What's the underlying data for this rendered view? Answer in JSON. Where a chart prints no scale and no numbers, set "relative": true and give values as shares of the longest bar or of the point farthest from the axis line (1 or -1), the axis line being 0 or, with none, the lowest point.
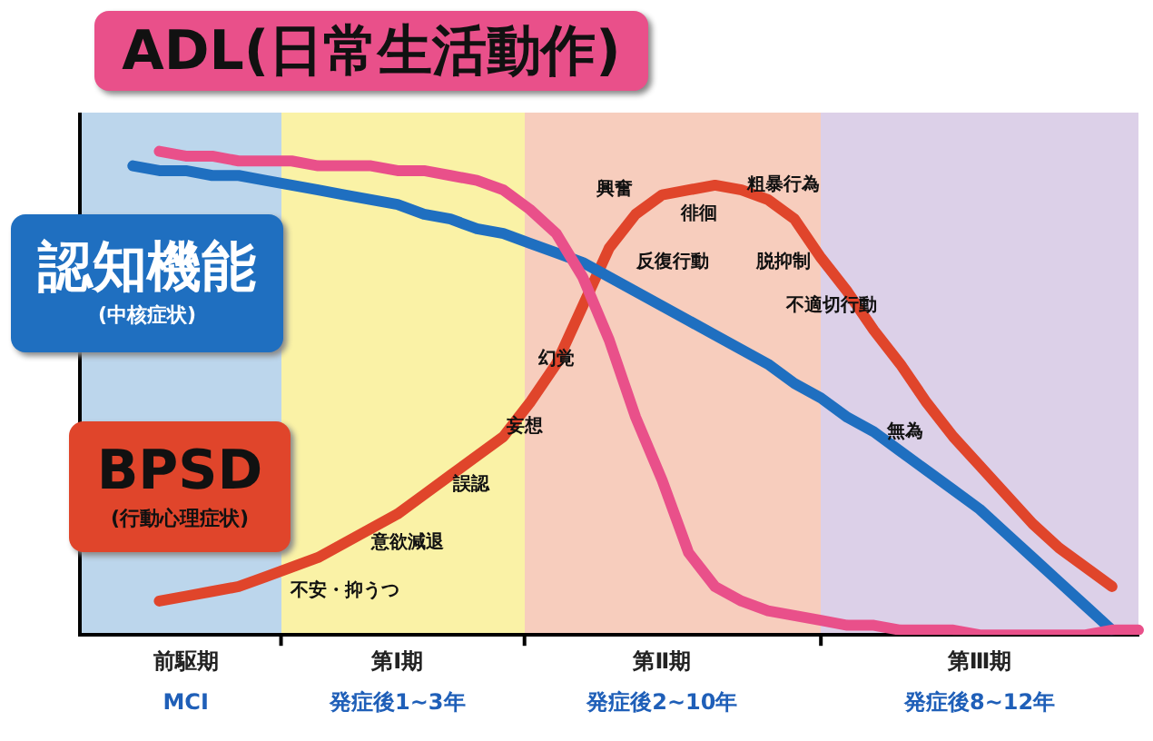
{
  "chart_data": {
    "type": "line",
    "relative": true,
    "marker": "none",
    "line_style": "solid",
    "categories": [
      null,
      null,
      null,
      null,
      "前駆期",
      null,
      null,
      null,
      null,
      null,
      null,
      null,
      "第Ⅰ期",
      null,
      null,
      null,
      null,
      null,
      null,
      null,
      null,
      null,
      "第Ⅱ期",
      null,
      null,
      null,
      null,
      null,
      null,
      null,
      null,
      null,
      null,
      null,
      "第Ⅲ期",
      null,
      null,
      null,
      null,
      null,
      null
    ],
    "series": [
      {
        "name": "ADL(日常生活動作)",
        "color": "#e9508a",
        "values": [
          null,
          null,
          null,
          1.0,
          0.99,
          0.99,
          0.98,
          0.98,
          0.98,
          0.97,
          0.97,
          0.97,
          0.96,
          0.96,
          0.95,
          0.94,
          0.92,
          0.88,
          0.83,
          0.74,
          0.61,
          0.45,
          0.32,
          0.17,
          0.1,
          0.07,
          0.05,
          0.04,
          0.03,
          0.02,
          0.02,
          0.01,
          0.01,
          0.01,
          0.0,
          0.0,
          0.0,
          0.0,
          0.0,
          0.01,
          0.01
        ]
      },
      {
        "name": "認知機能\n(中核症状)",
        "color": "#1f6fc0",
        "values": [
          null,
          null,
          0.97,
          0.96,
          0.96,
          0.95,
          0.95,
          0.94,
          0.93,
          0.92,
          0.91,
          0.9,
          0.89,
          0.87,
          0.86,
          0.84,
          0.83,
          0.81,
          0.79,
          0.77,
          0.74,
          0.71,
          0.68,
          0.65,
          0.62,
          0.59,
          0.56,
          0.52,
          0.49,
          0.45,
          0.42,
          0.38,
          0.34,
          0.3,
          0.26,
          0.21,
          0.16,
          0.11,
          0.06,
          0.01,
          null
        ]
      },
      {
        "name": "BPSD\n(行動心理症状)",
        "color": "#e0452b",
        "values": [
          null,
          null,
          null,
          0.07,
          0.08,
          0.09,
          0.1,
          0.12,
          0.14,
          0.16,
          0.19,
          0.22,
          0.25,
          0.29,
          0.33,
          0.37,
          0.41,
          0.48,
          0.56,
          0.68,
          0.8,
          0.87,
          0.91,
          0.92,
          0.93,
          0.92,
          0.9,
          0.86,
          0.78,
          0.71,
          0.63,
          0.56,
          0.48,
          0.41,
          0.35,
          0.29,
          0.23,
          0.18,
          0.14,
          0.1,
          null
        ]
      }
    ],
    "annotations": [
      "不安・抑うつ",
      "意欲減退",
      "誤認",
      "妄想",
      "幻覚",
      "反復行動",
      "興奮",
      "徘徊",
      "粗暴行為",
      "脱抑制",
      "不適切行動",
      "無為",
      "MCI",
      "発症後1~3年",
      "発症後2~10年",
      "発症後8~12年"
    ]
  }
}
